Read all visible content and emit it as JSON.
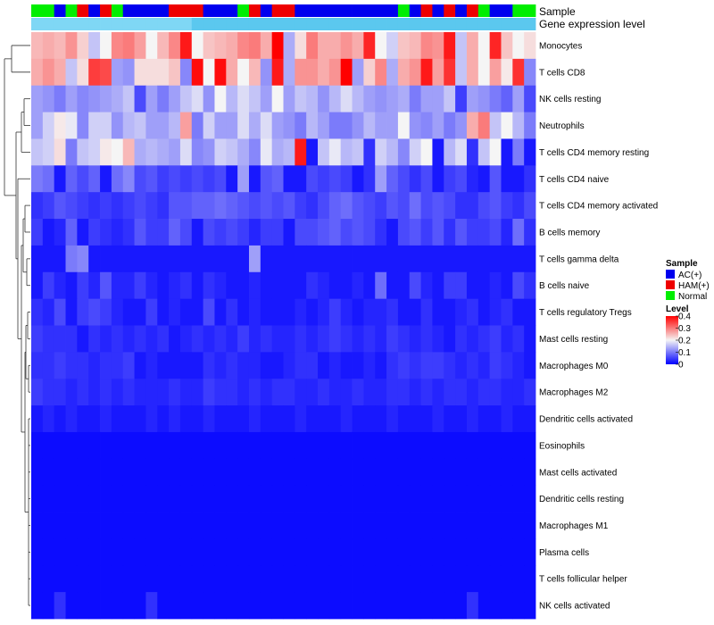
{
  "chart_data": {
    "type": "heatmap",
    "title": "",
    "rows": [
      "Monocytes",
      "T cells CD8",
      "NK cells resting",
      "Neutrophils",
      "T cells CD4 memory resting",
      "T cells CD4 naive",
      "T cells CD4 memory activated",
      "B cells memory",
      "T cells gamma delta",
      "B cells naive",
      "T cells regulatory  Tregs",
      "Mast cells resting",
      "Macrophages M0",
      "Macrophages M2",
      "Dendritic cells activated",
      "Eosinophils",
      "Mast cells activated",
      "Dendritic cells resting",
      "Macrophages M1",
      "Plasma cells",
      "T cells follicular helper",
      "NK cells activated"
    ],
    "column_annotation_sample": [
      "Normal",
      "Normal",
      "AC(+)",
      "Normal",
      "HAM(+)",
      "AC(+)",
      "HAM(+)",
      "Normal",
      "AC(+)",
      "AC(+)",
      "AC(+)",
      "AC(+)",
      "HAM(+)",
      "HAM(+)",
      "HAM(+)",
      "AC(+)",
      "AC(+)",
      "AC(+)",
      "Normal",
      "HAM(+)",
      "AC(+)",
      "HAM(+)",
      "HAM(+)",
      "AC(+)",
      "AC(+)",
      "AC(+)",
      "AC(+)",
      "AC(+)",
      "AC(+)",
      "AC(+)",
      "AC(+)",
      "AC(+)",
      "Normal",
      "AC(+)",
      "HAM(+)",
      "AC(+)",
      "HAM(+)",
      "AC(+)",
      "HAM(+)",
      "Normal",
      "AC(+)",
      "AC(+)",
      "Normal",
      "Normal"
    ],
    "row_values": [
      [
        0.25,
        0.26,
        0.25,
        0.28,
        0.23,
        0.16,
        0.2,
        0.29,
        0.3,
        0.27,
        0.2,
        0.25,
        0.29,
        0.38,
        0.2,
        0.24,
        0.25,
        0.26,
        0.29,
        0.3,
        0.26,
        0.4,
        0.14,
        0.22,
        0.3,
        0.26,
        0.26,
        0.28,
        0.26,
        0.37,
        0.2,
        0.17,
        0.24,
        0.25,
        0.29,
        0.28,
        0.38,
        0.16,
        0.26,
        0.2,
        0.37,
        0.24,
        0.2,
        0.22
      ],
      [
        0.26,
        0.28,
        0.26,
        0.16,
        0.22,
        0.35,
        0.34,
        0.13,
        0.12,
        0.22,
        0.22,
        0.22,
        0.24,
        0.11,
        0.39,
        0.2,
        0.39,
        0.26,
        0.2,
        0.25,
        0.12,
        0.38,
        0.14,
        0.28,
        0.28,
        0.26,
        0.28,
        0.4,
        0.13,
        0.23,
        0.29,
        0.14,
        0.26,
        0.28,
        0.38,
        0.27,
        0.36,
        0.16,
        0.26,
        0.2,
        0.27,
        0.21,
        0.36,
        0.11
      ],
      [
        0.13,
        0.12,
        0.1,
        0.13,
        0.11,
        0.12,
        0.13,
        0.14,
        0.16,
        0.06,
        0.13,
        0.1,
        0.13,
        0.16,
        0.18,
        0.12,
        0.2,
        0.15,
        0.18,
        0.16,
        0.13,
        0.2,
        0.13,
        0.16,
        0.15,
        0.12,
        0.15,
        0.18,
        0.15,
        0.13,
        0.12,
        0.13,
        0.14,
        0.1,
        0.13,
        0.13,
        0.16,
        0.05,
        0.13,
        0.12,
        0.1,
        0.08,
        0.13,
        0.06
      ],
      [
        0.13,
        0.17,
        0.21,
        0.19,
        0.11,
        0.17,
        0.17,
        0.12,
        0.15,
        0.16,
        0.13,
        0.13,
        0.15,
        0.27,
        0.1,
        0.17,
        0.13,
        0.13,
        0.18,
        0.14,
        0.18,
        0.13,
        0.12,
        0.1,
        0.15,
        0.13,
        0.1,
        0.1,
        0.12,
        0.15,
        0.13,
        0.13,
        0.2,
        0.12,
        0.11,
        0.13,
        0.1,
        0.12,
        0.26,
        0.3,
        0.16,
        0.2,
        0.15,
        0.1
      ],
      [
        0.16,
        0.17,
        0.22,
        0.1,
        0.16,
        0.17,
        0.21,
        0.2,
        0.25,
        0.14,
        0.15,
        0.14,
        0.13,
        0.18,
        0.11,
        0.12,
        0.17,
        0.16,
        0.14,
        0.11,
        0.19,
        0.14,
        0.15,
        0.38,
        0.02,
        0.16,
        0.19,
        0.15,
        0.16,
        0.04,
        0.17,
        0.15,
        0.11,
        0.17,
        0.2,
        0.02,
        0.15,
        0.18,
        0.04,
        0.16,
        0.2,
        0.02,
        0.1,
        0.02
      ],
      [
        0.1,
        0.09,
        0.02,
        0.08,
        0.06,
        0.08,
        0.02,
        0.09,
        0.11,
        0.06,
        0.07,
        0.05,
        0.06,
        0.05,
        0.06,
        0.05,
        0.06,
        0.02,
        0.13,
        0.02,
        0.07,
        0.08,
        0.02,
        0.02,
        0.06,
        0.05,
        0.06,
        0.05,
        0.02,
        0.04,
        0.13,
        0.08,
        0.06,
        0.04,
        0.06,
        0.02,
        0.05,
        0.06,
        0.03,
        0.02,
        0.07,
        0.02,
        0.02,
        0.04
      ],
      [
        0.04,
        0.05,
        0.07,
        0.06,
        0.05,
        0.04,
        0.05,
        0.04,
        0.05,
        0.06,
        0.05,
        0.04,
        0.07,
        0.07,
        0.08,
        0.08,
        0.09,
        0.08,
        0.07,
        0.06,
        0.07,
        0.06,
        0.07,
        0.05,
        0.04,
        0.06,
        0.08,
        0.09,
        0.07,
        0.06,
        0.05,
        0.07,
        0.06,
        0.09,
        0.06,
        0.07,
        0.06,
        0.04,
        0.04,
        0.06,
        0.07,
        0.05,
        0.04,
        0.06
      ],
      [
        0.05,
        0.02,
        0.03,
        0.08,
        0.02,
        0.05,
        0.04,
        0.03,
        0.04,
        0.07,
        0.05,
        0.05,
        0.08,
        0.06,
        0.02,
        0.06,
        0.05,
        0.06,
        0.05,
        0.03,
        0.05,
        0.05,
        0.02,
        0.06,
        0.06,
        0.07,
        0.08,
        0.06,
        0.07,
        0.06,
        0.04,
        0.02,
        0.06,
        0.07,
        0.05,
        0.07,
        0.04,
        0.07,
        0.05,
        0.05,
        0.06,
        0.03,
        0.09,
        0.04
      ],
      [
        0.02,
        0.02,
        0.02,
        0.1,
        0.11,
        0.02,
        0.02,
        0.02,
        0.02,
        0.02,
        0.02,
        0.02,
        0.02,
        0.02,
        0.02,
        0.02,
        0.02,
        0.02,
        0.02,
        0.13,
        0.02,
        0.02,
        0.02,
        0.02,
        0.02,
        0.02,
        0.02,
        0.02,
        0.02,
        0.02,
        0.02,
        0.02,
        0.02,
        0.02,
        0.02,
        0.02,
        0.02,
        0.02,
        0.02,
        0.02,
        0.02,
        0.02,
        0.02,
        0.02
      ],
      [
        0.02,
        0.05,
        0.03,
        0.02,
        0.05,
        0.03,
        0.07,
        0.03,
        0.03,
        0.05,
        0.03,
        0.02,
        0.03,
        0.04,
        0.02,
        0.04,
        0.03,
        0.02,
        0.02,
        0.03,
        0.02,
        0.02,
        0.02,
        0.02,
        0.04,
        0.03,
        0.02,
        0.02,
        0.03,
        0.02,
        0.09,
        0.02,
        0.02,
        0.06,
        0.03,
        0.02,
        0.05,
        0.05,
        0.02,
        0.02,
        0.03,
        0.02,
        0.06,
        0.04
      ],
      [
        0.04,
        0.03,
        0.06,
        0.02,
        0.05,
        0.06,
        0.05,
        0.03,
        0.02,
        0.02,
        0.05,
        0.02,
        0.03,
        0.02,
        0.02,
        0.06,
        0.02,
        0.04,
        0.02,
        0.03,
        0.02,
        0.02,
        0.02,
        0.03,
        0.02,
        0.03,
        0.05,
        0.03,
        0.02,
        0.03,
        0.03,
        0.04,
        0.02,
        0.02,
        0.04,
        0.02,
        0.02,
        0.03,
        0.04,
        0.02,
        0.03,
        0.04,
        0.02,
        0.02
      ],
      [
        0.05,
        0.04,
        0.04,
        0.04,
        0.02,
        0.04,
        0.03,
        0.04,
        0.03,
        0.04,
        0.03,
        0.04,
        0.02,
        0.03,
        0.04,
        0.03,
        0.04,
        0.03,
        0.05,
        0.03,
        0.04,
        0.03,
        0.03,
        0.04,
        0.03,
        0.04,
        0.05,
        0.04,
        0.03,
        0.04,
        0.03,
        0.05,
        0.04,
        0.03,
        0.04,
        0.03,
        0.02,
        0.04,
        0.03,
        0.04,
        0.05,
        0.03,
        0.04,
        0.02
      ],
      [
        0.04,
        0.04,
        0.05,
        0.04,
        0.04,
        0.03,
        0.04,
        0.04,
        0.05,
        0.02,
        0.03,
        0.02,
        0.02,
        0.02,
        0.02,
        0.04,
        0.03,
        0.04,
        0.03,
        0.03,
        0.02,
        0.02,
        0.03,
        0.04,
        0.04,
        0.02,
        0.03,
        0.02,
        0.02,
        0.03,
        0.02,
        0.04,
        0.05,
        0.04,
        0.05,
        0.05,
        0.04,
        0.03,
        0.04,
        0.03,
        0.05,
        0.04,
        0.03,
        0.02
      ],
      [
        0.05,
        0.04,
        0.04,
        0.03,
        0.04,
        0.03,
        0.04,
        0.03,
        0.04,
        0.03,
        0.03,
        0.03,
        0.04,
        0.03,
        0.03,
        0.05,
        0.04,
        0.04,
        0.03,
        0.04,
        0.03,
        0.04,
        0.04,
        0.03,
        0.03,
        0.04,
        0.03,
        0.03,
        0.04,
        0.03,
        0.03,
        0.04,
        0.04,
        0.03,
        0.04,
        0.03,
        0.04,
        0.04,
        0.03,
        0.04,
        0.04,
        0.03,
        0.03,
        0.04
      ],
      [
        0.02,
        0.03,
        0.02,
        0.03,
        0.02,
        0.02,
        0.03,
        0.02,
        0.02,
        0.02,
        0.03,
        0.02,
        0.03,
        0.02,
        0.02,
        0.03,
        0.02,
        0.02,
        0.02,
        0.03,
        0.02,
        0.02,
        0.02,
        0.03,
        0.02,
        0.02,
        0.02,
        0.03,
        0.02,
        0.02,
        0.02,
        0.03,
        0.02,
        0.02,
        0.02,
        0.03,
        0.02,
        0.02,
        0.03,
        0.02,
        0.02,
        0.03,
        0.02,
        0.02
      ],
      [
        0.01,
        0.01,
        0.01,
        0.01,
        0.01,
        0.01,
        0.01,
        0.01,
        0.01,
        0.01,
        0.01,
        0.01,
        0.01,
        0.01,
        0.01,
        0.01,
        0.01,
        0.01,
        0.01,
        0.01,
        0.01,
        0.01,
        0.01,
        0.01,
        0.01,
        0.01,
        0.01,
        0.01,
        0.01,
        0.01,
        0.01,
        0.01,
        0.01,
        0.01,
        0.01,
        0.01,
        0.01,
        0.01,
        0.01,
        0.01,
        0.01,
        0.01,
        0.01,
        0.01
      ],
      [
        0.01,
        0.01,
        0.01,
        0.01,
        0.01,
        0.01,
        0.01,
        0.01,
        0.01,
        0.01,
        0.01,
        0.01,
        0.01,
        0.01,
        0.01,
        0.01,
        0.01,
        0.01,
        0.01,
        0.01,
        0.01,
        0.01,
        0.01,
        0.01,
        0.01,
        0.01,
        0.01,
        0.01,
        0.01,
        0.01,
        0.01,
        0.01,
        0.01,
        0.01,
        0.01,
        0.01,
        0.01,
        0.01,
        0.01,
        0.01,
        0.01,
        0.01,
        0.01,
        0.01
      ],
      [
        0.01,
        0.01,
        0.01,
        0.01,
        0.01,
        0.01,
        0.01,
        0.01,
        0.01,
        0.01,
        0.01,
        0.01,
        0.01,
        0.01,
        0.01,
        0.01,
        0.01,
        0.01,
        0.01,
        0.01,
        0.01,
        0.01,
        0.01,
        0.01,
        0.01,
        0.01,
        0.01,
        0.01,
        0.01,
        0.01,
        0.01,
        0.01,
        0.01,
        0.01,
        0.01,
        0.01,
        0.01,
        0.01,
        0.01,
        0.01,
        0.01,
        0.01,
        0.01,
        0.01
      ],
      [
        0.01,
        0.01,
        0.01,
        0.01,
        0.01,
        0.01,
        0.01,
        0.01,
        0.01,
        0.01,
        0.01,
        0.01,
        0.01,
        0.01,
        0.01,
        0.01,
        0.01,
        0.01,
        0.01,
        0.01,
        0.01,
        0.01,
        0.01,
        0.01,
        0.01,
        0.01,
        0.01,
        0.01,
        0.01,
        0.01,
        0.01,
        0.01,
        0.01,
        0.01,
        0.01,
        0.01,
        0.01,
        0.01,
        0.01,
        0.01,
        0.01,
        0.01,
        0.01,
        0.01
      ],
      [
        0.01,
        0.01,
        0.01,
        0.01,
        0.01,
        0.01,
        0.01,
        0.01,
        0.01,
        0.01,
        0.01,
        0.01,
        0.01,
        0.01,
        0.01,
        0.01,
        0.01,
        0.01,
        0.01,
        0.01,
        0.01,
        0.01,
        0.01,
        0.01,
        0.01,
        0.01,
        0.01,
        0.01,
        0.01,
        0.01,
        0.01,
        0.01,
        0.01,
        0.01,
        0.01,
        0.01,
        0.01,
        0.01,
        0.01,
        0.01,
        0.01,
        0.01,
        0.01,
        0.01
      ],
      [
        0.01,
        0.01,
        0.01,
        0.01,
        0.01,
        0.01,
        0.01,
        0.01,
        0.01,
        0.01,
        0.01,
        0.01,
        0.01,
        0.01,
        0.01,
        0.01,
        0.01,
        0.01,
        0.01,
        0.01,
        0.01,
        0.01,
        0.01,
        0.01,
        0.01,
        0.01,
        0.01,
        0.01,
        0.01,
        0.01,
        0.01,
        0.01,
        0.01,
        0.01,
        0.01,
        0.01,
        0.01,
        0.01,
        0.01,
        0.01,
        0.01,
        0.01,
        0.01,
        0.01
      ],
      [
        0.01,
        0.01,
        0.04,
        0.01,
        0.01,
        0.01,
        0.01,
        0.01,
        0.01,
        0.01,
        0.04,
        0.01,
        0.01,
        0.01,
        0.01,
        0.01,
        0.01,
        0.01,
        0.01,
        0.01,
        0.01,
        0.01,
        0.01,
        0.01,
        0.01,
        0.01,
        0.01,
        0.01,
        0.01,
        0.01,
        0.01,
        0.01,
        0.01,
        0.01,
        0.01,
        0.01,
        0.01,
        0.01,
        0.04,
        0.01,
        0.01,
        0.01,
        0.01,
        0.01
      ]
    ],
    "annotation_tracks": [
      "Sample",
      "Gene expression level"
    ],
    "legend_sample": {
      "title": "Sample",
      "entries": [
        {
          "label": "AC(+)",
          "color": "#0000ee"
        },
        {
          "label": "HAM(+)",
          "color": "#ee0000"
        },
        {
          "label": "Normal",
          "color": "#00ee00"
        }
      ]
    },
    "legend_level": {
      "title": "Level",
      "min": 0,
      "max": 0.4,
      "ticks": [
        "0.4",
        "0.3",
        "0.2",
        "0.1",
        "0"
      ],
      "tick_values": [
        0.4,
        0.3,
        0.2,
        0.1,
        0
      ],
      "colors": {
        "low": "#0000ff",
        "mid": "#f5f5f5",
        "high": "#ff0000"
      }
    },
    "gene_expression_color": "#87ceeb"
  }
}
